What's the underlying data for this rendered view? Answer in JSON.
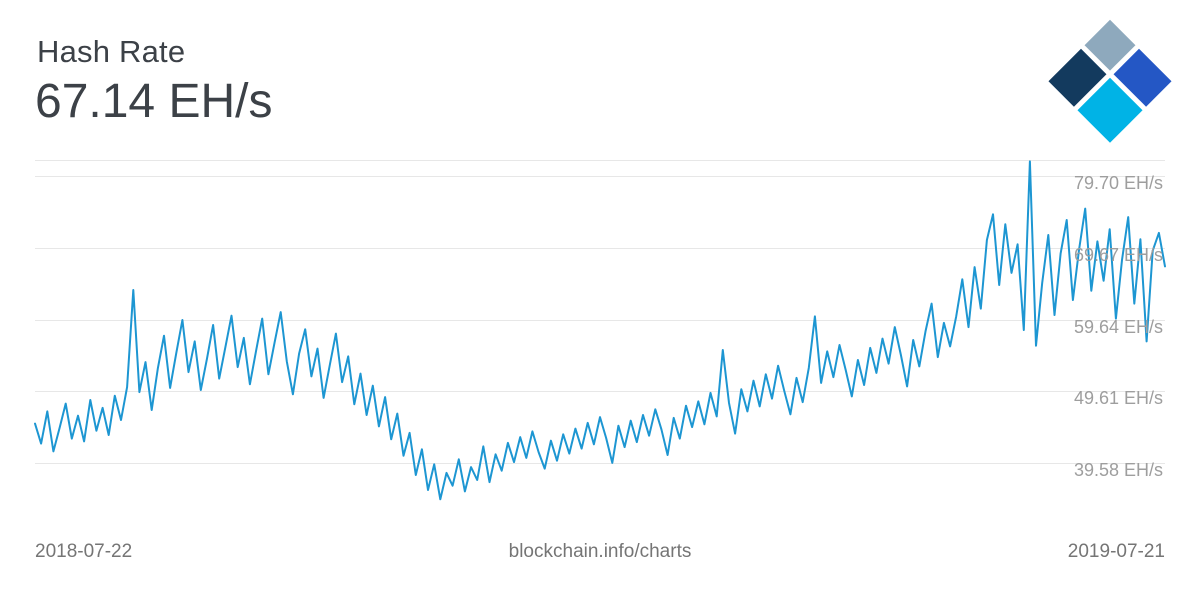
{
  "header": {
    "title": "Hash Rate",
    "current_value": "67.14 EH/s"
  },
  "logo": {
    "colors": [
      "#8ea9bd",
      "#2457c5",
      "#133a5e",
      "#00b3e6"
    ]
  },
  "footer": {
    "start_date": "2018-07-22",
    "watermark": "blockchain.info/charts",
    "end_date": "2019-07-21"
  },
  "chart_data": {
    "type": "line",
    "title": "Hash Rate",
    "unit": "EH/s",
    "current_value": 67.14,
    "x_range": [
      "2018-07-22",
      "2019-07-21"
    ],
    "ylim": [
      33,
      82
    ],
    "yticks": [
      79.7,
      69.67,
      59.64,
      49.61,
      39.58
    ],
    "ytick_labels": [
      "79.70 EH/s",
      "69.67 EH/s",
      "59.64 EH/s",
      "49.61 EH/s",
      "39.58 EH/s"
    ],
    "grid": "horizontal",
    "legend": "none",
    "line_color": "#1d96d2",
    "values": [
      45.1,
      42.3,
      46.8,
      41.2,
      44.5,
      47.9,
      43.0,
      46.2,
      42.6,
      48.4,
      44.1,
      47.3,
      43.5,
      49.0,
      45.6,
      50.2,
      63.8,
      49.5,
      53.7,
      47.0,
      52.8,
      57.4,
      50.1,
      55.0,
      59.6,
      52.3,
      56.6,
      49.8,
      54.2,
      58.9,
      51.4,
      55.8,
      60.2,
      53.0,
      57.1,
      50.6,
      55.3,
      59.8,
      52.0,
      56.4,
      60.7,
      53.8,
      49.2,
      54.9,
      58.3,
      51.7,
      55.6,
      48.7,
      53.3,
      57.7,
      50.9,
      54.5,
      47.8,
      52.1,
      46.3,
      50.4,
      44.7,
      48.8,
      42.9,
      46.5,
      40.6,
      43.8,
      37.9,
      41.5,
      35.8,
      39.4,
      34.5,
      38.2,
      36.4,
      40.1,
      35.6,
      39.0,
      37.2,
      41.9,
      36.9,
      40.8,
      38.5,
      42.4,
      39.7,
      43.2,
      40.3,
      44.0,
      41.1,
      38.8,
      42.7,
      39.9,
      43.6,
      40.9,
      44.4,
      41.6,
      45.2,
      42.2,
      46.0,
      43.1,
      39.6,
      44.8,
      41.8,
      45.5,
      42.5,
      46.3,
      43.4,
      47.1,
      44.3,
      40.7,
      45.9,
      43.0,
      47.6,
      44.6,
      48.2,
      45.0,
      49.4,
      46.1,
      55.4,
      48.0,
      43.7,
      49.9,
      46.8,
      51.1,
      47.5,
      52.0,
      48.6,
      53.2,
      49.7,
      46.4,
      51.5,
      48.1,
      52.9,
      60.1,
      50.8,
      55.2,
      51.6,
      56.1,
      52.6,
      48.9,
      54.0,
      50.5,
      55.7,
      52.2,
      57.0,
      53.5,
      58.6,
      54.7,
      50.3,
      56.8,
      53.1,
      58.0,
      61.9,
      54.4,
      59.2,
      55.9,
      60.1,
      65.3,
      58.6,
      67.0,
      61.2,
      70.8,
      74.4,
      64.5,
      73.0,
      66.2,
      70.2,
      58.2,
      81.8,
      56.0,
      64.8,
      71.5,
      60.3,
      68.9,
      73.6,
      62.4,
      69.4,
      75.2,
      63.7,
      70.6,
      65.1,
      72.3,
      59.8,
      68.0,
      74.0,
      61.9,
      70.9,
      56.6,
      69.3,
      71.8,
      67.1
    ]
  }
}
